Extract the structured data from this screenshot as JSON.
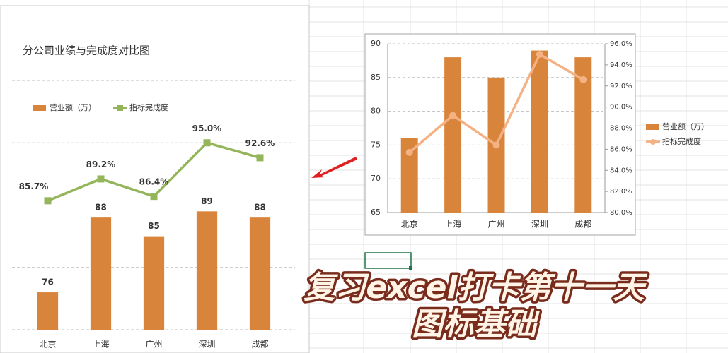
{
  "chart_data": [
    {
      "type": "combo",
      "title": "分公司业绩与完成度对比图",
      "categories": [
        "北京",
        "上海",
        "广州",
        "深圳",
        "成都"
      ],
      "series": [
        {
          "name": "营业额（万）",
          "color": "#d9843b",
          "type": "bar",
          "values": [
            76,
            88,
            85,
            89,
            88
          ]
        },
        {
          "name": "指标完成度",
          "color": "#94b55a",
          "type": "line",
          "marker": "square",
          "axis": "y2",
          "values": [
            85.7,
            89.2,
            86.4,
            95.0,
            92.6
          ],
          "value_labels": [
            "85.7%",
            "89.2%",
            "86.4%",
            "95.0%",
            "92.6%"
          ]
        }
      ],
      "ylim": [
        70,
        110
      ],
      "yticks": [
        70,
        80,
        90,
        100,
        110
      ],
      "y2lim": [
        65,
        105
      ],
      "tick_labels": false,
      "data_labels": true,
      "grid": true,
      "legend": "top"
    },
    {
      "type": "combo",
      "categories": [
        "北京",
        "上海",
        "广州",
        "深圳",
        "成都"
      ],
      "series": [
        {
          "name": "营业额（万）",
          "color": "#d9843b",
          "type": "bar",
          "values": [
            76,
            88,
            85,
            89,
            88
          ]
        },
        {
          "name": "指标完成度",
          "color": "#f4b183",
          "type": "line",
          "marker": "circle",
          "axis": "y2",
          "values": [
            85.7,
            89.2,
            86.4,
            95.0,
            92.6
          ]
        }
      ],
      "ylim": [
        65,
        90
      ],
      "yticks": [
        65,
        70,
        75,
        80,
        85,
        90
      ],
      "y2lim": [
        80,
        96
      ],
      "y2ticks": [
        {
          "value": 80,
          "label": "80.0%"
        },
        {
          "value": 82,
          "label": "82.0%"
        },
        {
          "value": 84,
          "label": "84.0%"
        },
        {
          "value": 86,
          "label": "86.0%"
        },
        {
          "value": 88,
          "label": "88.0%"
        },
        {
          "value": 90,
          "label": "90.0%"
        },
        {
          "value": 92,
          "label": "92.0%"
        },
        {
          "value": 94,
          "label": "94.0%"
        },
        {
          "value": 96,
          "label": "96.0%"
        }
      ],
      "tick_labels": true,
      "data_labels": false,
      "grid": true,
      "legend": "right"
    }
  ],
  "caption": {
    "line1": "复习excel打卡第十一天",
    "line2": "图标基础"
  }
}
